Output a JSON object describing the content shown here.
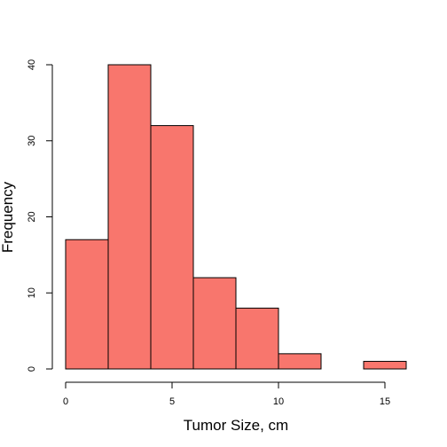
{
  "chart_data": {
    "type": "bar",
    "title": "",
    "xlabel": "Tumor Size, cm",
    "ylabel": "Frequency",
    "bins": [
      {
        "start": 0,
        "end": 2,
        "count": 17
      },
      {
        "start": 2,
        "end": 4,
        "count": 40
      },
      {
        "start": 4,
        "end": 6,
        "count": 32
      },
      {
        "start": 6,
        "end": 8,
        "count": 12
      },
      {
        "start": 8,
        "end": 10,
        "count": 8
      },
      {
        "start": 10,
        "end": 12,
        "count": 2
      },
      {
        "start": 12,
        "end": 14,
        "count": 0
      },
      {
        "start": 14,
        "end": 16,
        "count": 1
      }
    ],
    "xticks": [
      0,
      5,
      10,
      15
    ],
    "yticks": [
      0,
      10,
      20,
      30,
      40
    ],
    "xlim": [
      0,
      16
    ],
    "ylim": [
      0,
      40
    ],
    "grid": false,
    "bar_color": "#F8766D"
  }
}
